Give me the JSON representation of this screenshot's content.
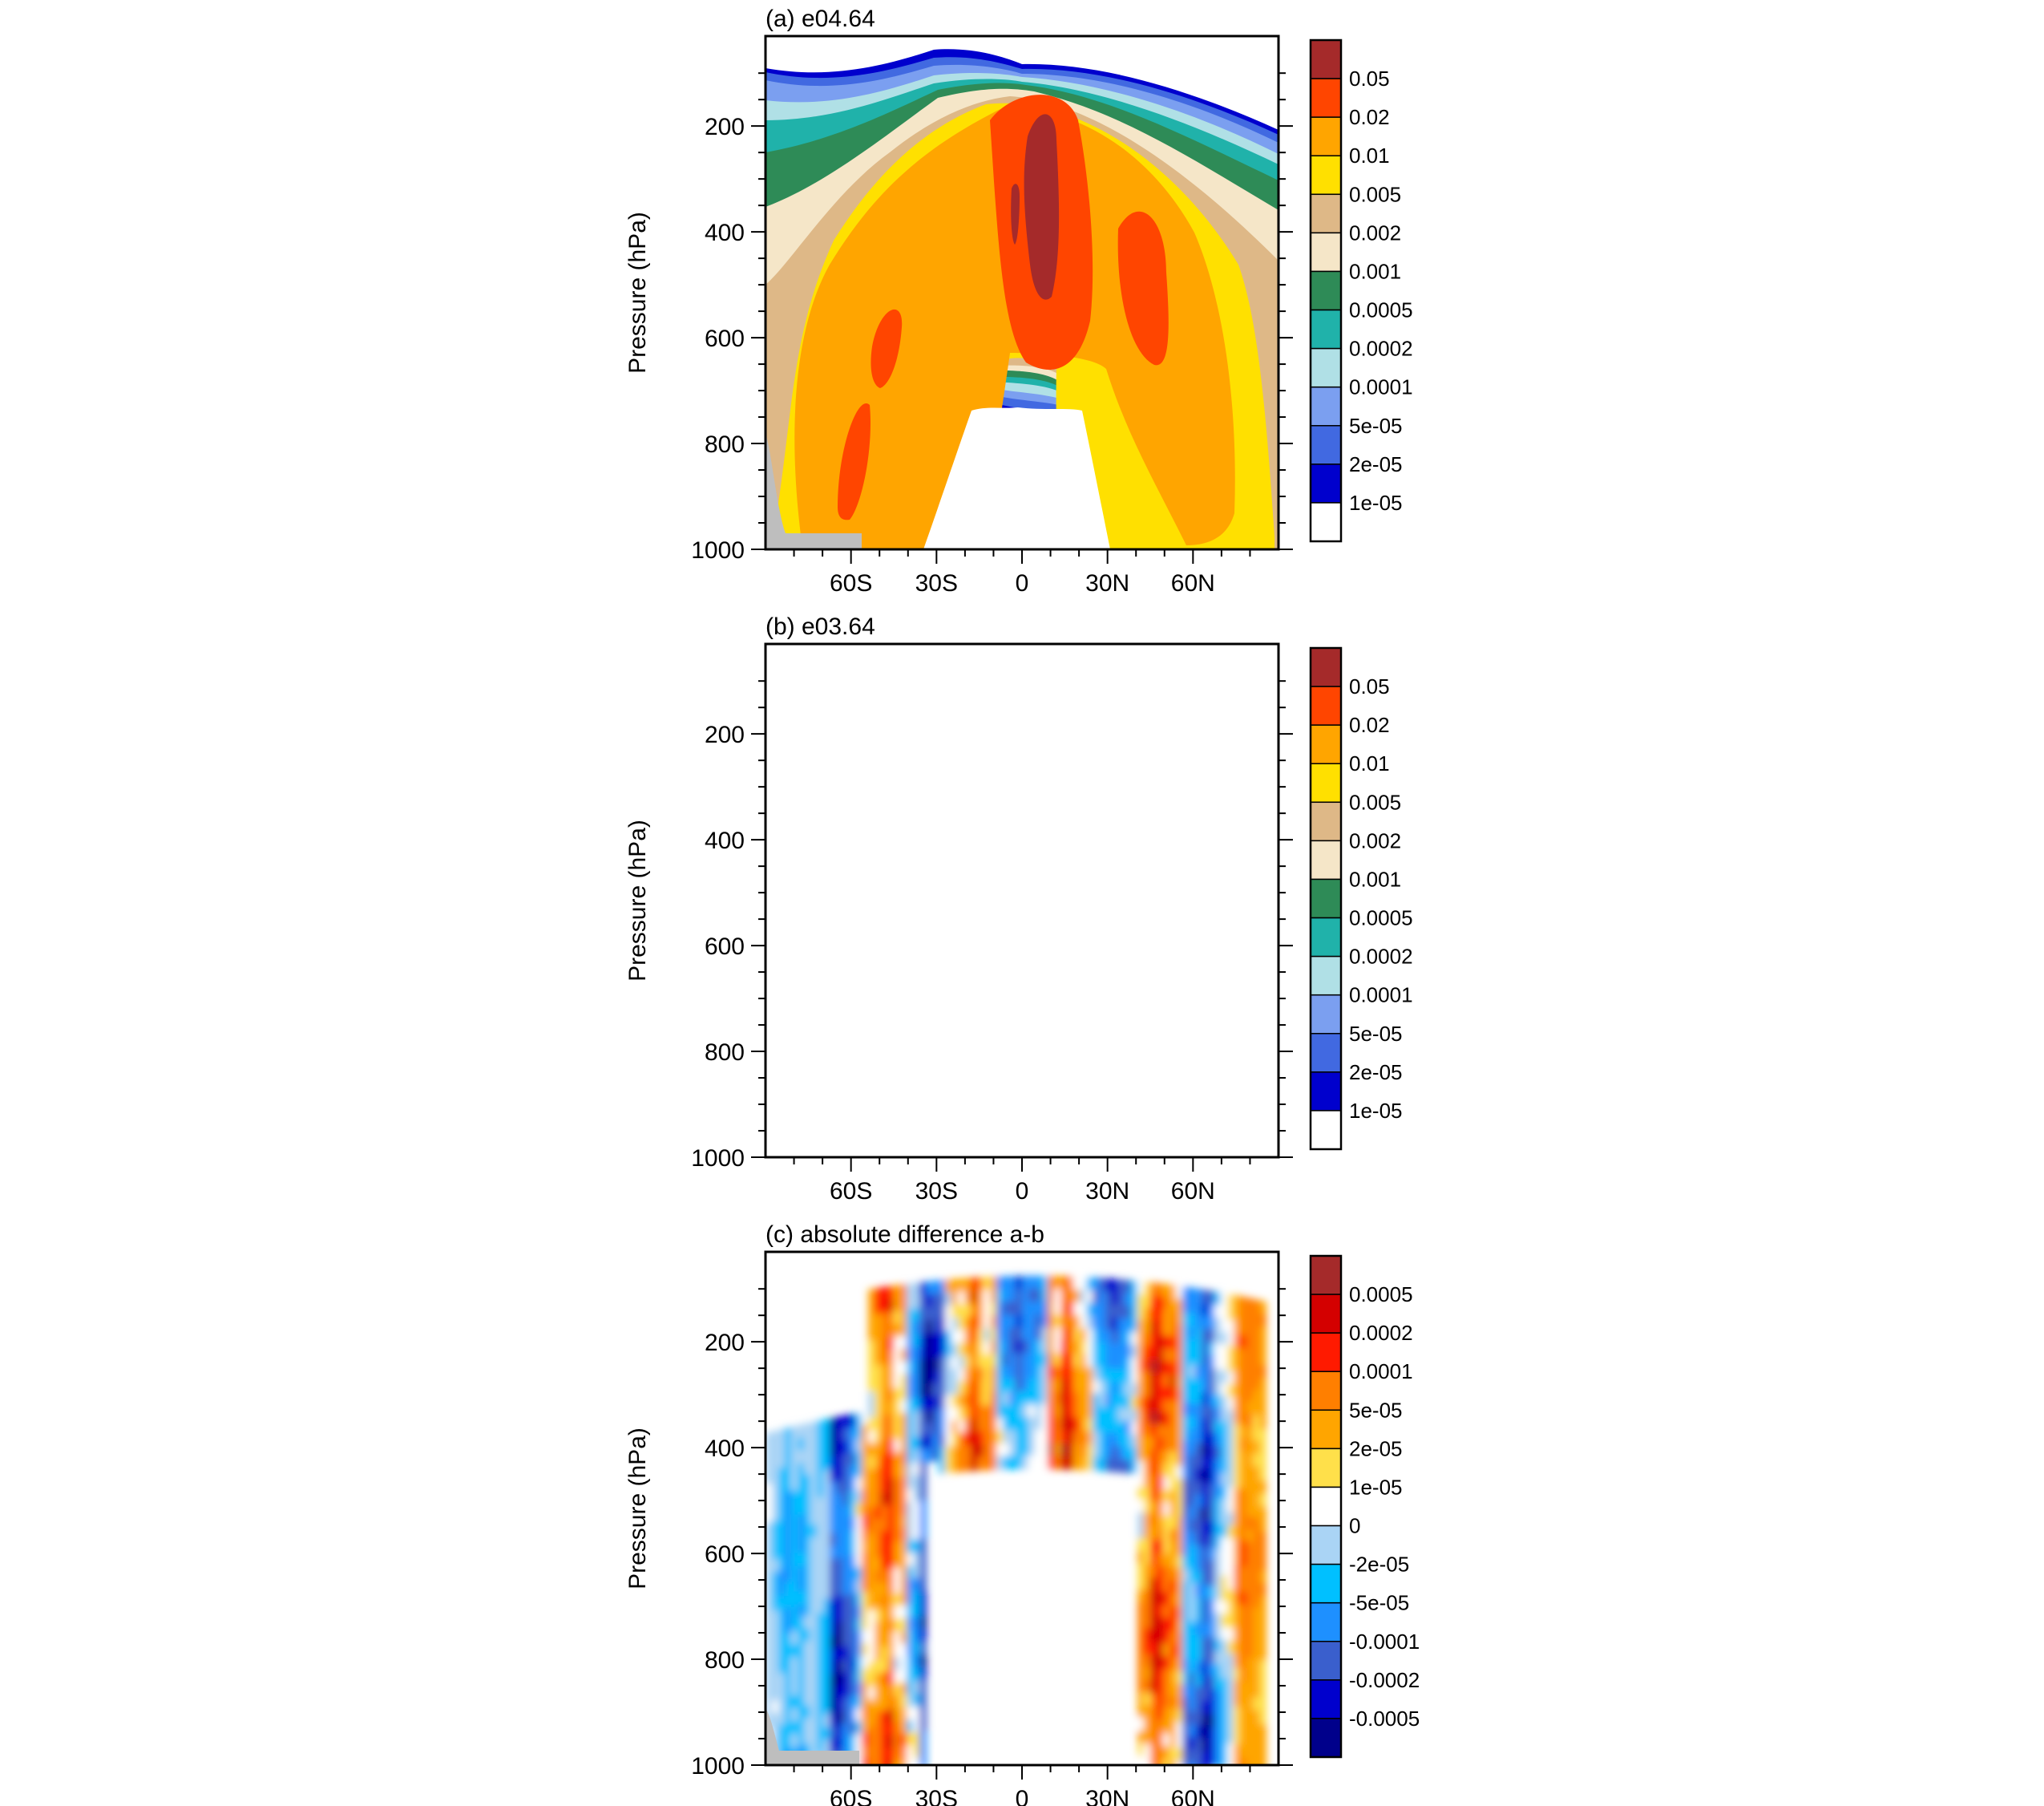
{
  "chart_data": [
    {
      "type": "contour",
      "title": "(a) e04.64",
      "ylabel": "Pressure (hPa)",
      "xlabel": "",
      "y_axis": {
        "ticks": [
          200,
          400,
          600,
          800,
          1000
        ],
        "reversed": true,
        "ylim": [
          1000,
          30
        ]
      },
      "x_axis": {
        "ticks": [
          "60S",
          "30S",
          "0",
          "30N",
          "60N"
        ],
        "tick_values": [
          -60,
          -30,
          0,
          30,
          60
        ],
        "xlim": [
          -90,
          90
        ]
      },
      "colorbar": {
        "labels": [
          "0.05",
          "0.02",
          "0.01",
          "0.005",
          "0.002",
          "0.001",
          "0.0005",
          "0.0002",
          "0.0001",
          "5e-05",
          "2e-05",
          "1e-05"
        ],
        "colors": [
          "#a52a2a",
          "#ff4500",
          "#ffa500",
          "#ffe000",
          "#deb887",
          "#f5e6c8",
          "#2e8b57",
          "#20b2aa",
          "#b0e0e6",
          "#7b9ff0",
          "#4169e1",
          "#0000cd",
          "#ffffff"
        ]
      },
      "surface_mask_color": "#bebebe"
    },
    {
      "type": "contour",
      "title": "(b) e03.64",
      "ylabel": "Pressure (hPa)",
      "xlabel": "",
      "y_axis": {
        "ticks": [
          200,
          400,
          600,
          800,
          1000
        ],
        "reversed": true,
        "ylim": [
          1000,
          30
        ]
      },
      "x_axis": {
        "ticks": [
          "60S",
          "30S",
          "0",
          "30N",
          "60N"
        ],
        "tick_values": [
          -60,
          -30,
          0,
          30,
          60
        ],
        "xlim": [
          -90,
          90
        ]
      },
      "colorbar": {
        "labels": [
          "0.05",
          "0.02",
          "0.01",
          "0.005",
          "0.002",
          "0.001",
          "0.0005",
          "0.0002",
          "0.0001",
          "5e-05",
          "2e-05",
          "1e-05"
        ],
        "colors": [
          "#a52a2a",
          "#ff4500",
          "#ffa500",
          "#ffe000",
          "#deb887",
          "#f5e6c8",
          "#2e8b57",
          "#20b2aa",
          "#b0e0e6",
          "#7b9ff0",
          "#4169e1",
          "#0000cd",
          "#ffffff"
        ]
      },
      "surface_mask_color": "#bebebe"
    },
    {
      "type": "contour",
      "title": "(c) absolute difference a-b",
      "ylabel": "Pressure (hPa)",
      "xlabel": "",
      "y_axis": {
        "ticks": [
          200,
          400,
          600,
          800,
          1000
        ],
        "reversed": true,
        "ylim": [
          1000,
          30
        ]
      },
      "x_axis": {
        "ticks": [
          "60S",
          "30S",
          "0",
          "30N",
          "60N"
        ],
        "tick_values": [
          -60,
          -30,
          0,
          30,
          60
        ],
        "xlim": [
          -90,
          90
        ]
      },
      "colorbar": {
        "labels": [
          "0.0005",
          "0.0002",
          "0.0001",
          "5e-05",
          "2e-05",
          "1e-05",
          "0",
          "-2e-05",
          "-5e-05",
          "-0.0001",
          "-0.0002",
          "-0.0005"
        ],
        "colors": [
          "#a52a2a",
          "#d40000",
          "#ff1a00",
          "#ff7f00",
          "#ffa500",
          "#ffe04a",
          "#ffffff",
          "#aad4f5",
          "#00c0ff",
          "#1e90ff",
          "#3a5fcd",
          "#0000cd",
          "#00008b"
        ]
      },
      "surface_mask_color": "#bebebe"
    }
  ]
}
